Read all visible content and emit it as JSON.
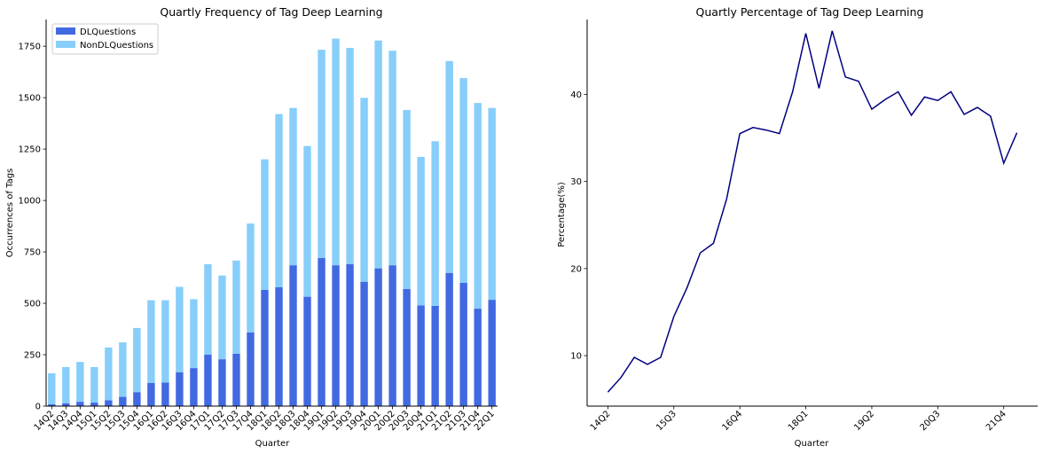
{
  "colors": {
    "dl": "#4169e1",
    "nondl": "#87cefa",
    "line": "#000080"
  },
  "chart_data": [
    {
      "type": "bar",
      "stacked": true,
      "title": "Quartly Frequency of Tag Deep Learning",
      "xlabel": "Quarter",
      "ylabel": "Occurrences of Tags",
      "ylim": [
        0,
        1880
      ],
      "yticks": [
        0,
        250,
        500,
        750,
        1000,
        1250,
        1500,
        1750
      ],
      "legend_position": "top-left",
      "categories": [
        "14Q2",
        "14Q3",
        "14Q4",
        "15Q1",
        "15Q2",
        "15Q3",
        "15Q4",
        "16Q1",
        "16Q2",
        "16Q3",
        "16Q4",
        "17Q1",
        "17Q2",
        "17Q3",
        "17Q4",
        "18Q1",
        "18Q2",
        "18Q3",
        "18Q4",
        "19Q1",
        "19Q2",
        "19Q3",
        "19Q4",
        "20Q1",
        "20Q2",
        "20Q3",
        "20Q4",
        "21Q1",
        "21Q2",
        "21Q3",
        "21Q4",
        "22Q1"
      ],
      "series": [
        {
          "name": "DLQuestions",
          "values": [
            9,
            14,
            21,
            17,
            28,
            45,
            68,
            113,
            115,
            165,
            185,
            250,
            228,
            255,
            358,
            565,
            578,
            685,
            532,
            720,
            685,
            690,
            605,
            670,
            685,
            570,
            490,
            488,
            648,
            600,
            474,
            517
          ]
        },
        {
          "name": "NonDLQuestions",
          "values": [
            151,
            176,
            194,
            173,
            257,
            265,
            312,
            402,
            400,
            415,
            335,
            440,
            407,
            453,
            530,
            635,
            842,
            765,
            733,
            1013,
            1102,
            1052,
            894,
            1108,
            1043,
            870,
            722,
            800,
            1030,
            995,
            1000,
            933
          ]
        }
      ]
    },
    {
      "type": "line",
      "title": "Quartly Percentage of Tag Deep Learning",
      "xlabel": "Quarter",
      "ylabel": "Percentage(%)",
      "ylim": [
        4.2,
        48.6
      ],
      "yticks": [
        10,
        20,
        30,
        40
      ],
      "xtick_labels": [
        "14Q2",
        "15Q3",
        "16Q4",
        "18Q1",
        "19Q2",
        "20Q3",
        "21Q4"
      ],
      "xtick_indices": [
        0,
        5,
        10,
        15,
        20,
        25,
        30
      ],
      "x": [
        "14Q2",
        "14Q3",
        "14Q4",
        "15Q1",
        "15Q2",
        "15Q3",
        "15Q4",
        "16Q1",
        "16Q2",
        "16Q3",
        "16Q4",
        "17Q1",
        "17Q2",
        "17Q3",
        "17Q4",
        "18Q1",
        "18Q2",
        "18Q3",
        "18Q4",
        "19Q1",
        "19Q2",
        "19Q3",
        "19Q4",
        "20Q1",
        "20Q2",
        "20Q3",
        "20Q4",
        "21Q1",
        "21Q2",
        "21Q3",
        "21Q4",
        "22Q1"
      ],
      "series": [
        {
          "values": [
            5.8,
            7.5,
            9.8,
            9.0,
            9.8,
            14.5,
            17.8,
            21.8,
            22.9,
            28.0,
            35.5,
            36.2,
            35.9,
            35.5,
            40.3,
            47.0,
            40.7,
            47.3,
            42.0,
            41.5,
            38.3,
            39.4,
            40.3,
            37.6,
            39.7,
            39.3,
            40.3,
            37.7,
            38.5,
            37.5,
            32.1,
            35.6
          ]
        }
      ]
    }
  ]
}
